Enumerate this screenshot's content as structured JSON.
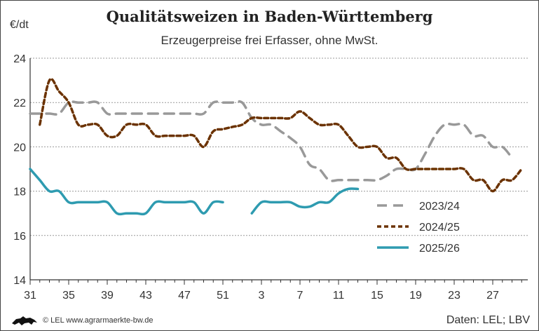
{
  "chart_data": {
    "type": "line",
    "title": "Qualitätsweizen in Baden-Württemberg",
    "subtitle": "Erzeugerpreise frei Erfasser, ohne MwSt.",
    "ylabel": "€/dt",
    "ylim": [
      14,
      24
    ],
    "yticks": [
      14,
      16,
      18,
      20,
      22,
      24
    ],
    "grid": true,
    "legend_position": "bottom-right",
    "x": [
      31,
      32,
      33,
      34,
      35,
      36,
      37,
      38,
      39,
      40,
      41,
      42,
      43,
      44,
      45,
      46,
      47,
      48,
      49,
      50,
      51,
      52,
      1,
      2,
      3,
      4,
      5,
      6,
      7,
      8,
      9,
      10,
      11,
      12,
      13,
      14,
      15,
      16,
      17,
      18,
      19,
      20,
      21,
      22,
      23,
      24,
      25,
      26,
      27,
      28,
      29,
      30
    ],
    "xlabel": "",
    "xticks": [
      "31",
      "35",
      "39",
      "43",
      "47",
      "51",
      "3",
      "7",
      "11",
      "15",
      "19",
      "23",
      "27"
    ],
    "series": [
      {
        "name": "2023/24",
        "color": "#999999",
        "style": "long-dash",
        "values": [
          21.5,
          21.5,
          21.5,
          21.5,
          22,
          22,
          22,
          22,
          21.5,
          21.5,
          21.5,
          21.5,
          21.5,
          21.5,
          21.5,
          21.5,
          21.5,
          21.5,
          21.5,
          22,
          22,
          22,
          22,
          21.3,
          21,
          21,
          20.7,
          20.4,
          20,
          19.2,
          19,
          18.5,
          18.5,
          18.5,
          18.5,
          18.5,
          18.5,
          18.7,
          19,
          19,
          19,
          19.7,
          20.5,
          21,
          21,
          21,
          20.5,
          20.5,
          20,
          20,
          19.5,
          null
        ]
      },
      {
        "name": "2024/25",
        "color": "#6b3200",
        "style": "short-dash",
        "values": [
          null,
          21,
          23,
          22.5,
          22,
          21,
          21,
          21,
          20.5,
          20.5,
          21,
          21,
          21,
          20.5,
          20.5,
          20.5,
          20.5,
          20.5,
          20,
          20.7,
          20.8,
          20.9,
          21,
          21.3,
          21.3,
          21.3,
          21.3,
          21.3,
          21.6,
          21.3,
          21,
          21,
          21,
          20.5,
          20,
          20,
          20,
          19.5,
          19.5,
          19,
          19,
          19,
          19,
          19,
          19,
          19,
          18.5,
          18.5,
          18,
          18.5,
          18.5,
          19
        ]
      },
      {
        "name": "2025/26",
        "color": "#2e9bb0",
        "style": "solid",
        "values": [
          19,
          18.5,
          18,
          18,
          17.5,
          17.5,
          17.5,
          17.5,
          17.5,
          17,
          17,
          17,
          17,
          17.5,
          17.5,
          17.5,
          17.5,
          17.5,
          17,
          17.5,
          17.5,
          null,
          null,
          17,
          17.5,
          17.5,
          17.5,
          17.5,
          17.3,
          17.3,
          17.5,
          17.5,
          17.9,
          18.1,
          18.1,
          null,
          null,
          null,
          null,
          null,
          null,
          null,
          null,
          null,
          null,
          null,
          null,
          null,
          null,
          null,
          null,
          null
        ]
      }
    ]
  },
  "footer": {
    "copyright": "© LEL www.agrarmaerkte-bw.de",
    "source": "Daten: LEL; LBV"
  }
}
